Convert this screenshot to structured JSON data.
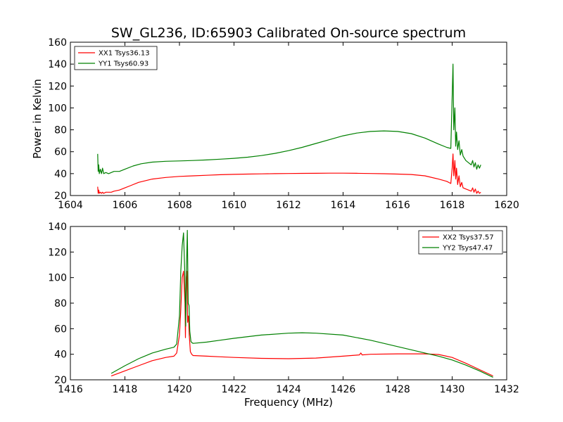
{
  "chart_data": [
    {
      "type": "line",
      "title": "SW_GL236, ID:65903 Calibrated On-source spectrum",
      "xlabel": "",
      "ylabel": "Power in Kelvin",
      "xlim": [
        1604,
        1620
      ],
      "ylim": [
        20,
        160
      ],
      "xticks": [
        1604,
        1606,
        1608,
        1610,
        1612,
        1614,
        1616,
        1618,
        1620
      ],
      "yticks": [
        20,
        40,
        60,
        80,
        100,
        120,
        140,
        160
      ],
      "legend_position": "top-left",
      "series": [
        {
          "name": "XX1 Tsys36.13",
          "color": "#ff0000",
          "x": [
            1605.0,
            1605.02,
            1605.04,
            1605.06,
            1605.1,
            1605.14,
            1605.18,
            1605.22,
            1605.3,
            1605.4,
            1605.5,
            1605.6,
            1605.8,
            1606.0,
            1606.2,
            1606.5,
            1607.0,
            1607.5,
            1608.0,
            1608.5,
            1609.0,
            1609.5,
            1610.0,
            1610.5,
            1611.0,
            1611.5,
            1612.0,
            1612.5,
            1613.0,
            1613.5,
            1614.0,
            1614.5,
            1615.0,
            1615.5,
            1616.0,
            1616.5,
            1617.0,
            1617.5,
            1617.8,
            1617.95,
            1618.0,
            1618.03,
            1618.06,
            1618.1,
            1618.13,
            1618.16,
            1618.2,
            1618.25,
            1618.3,
            1618.35,
            1618.4,
            1618.5,
            1618.6,
            1618.7,
            1618.75,
            1618.8,
            1618.85,
            1618.9,
            1618.95,
            1619.0,
            1619.05
          ],
          "values": [
            28,
            22,
            25,
            22,
            23,
            22,
            23,
            22,
            23,
            23,
            23,
            24,
            25,
            27,
            29,
            32,
            35,
            36.5,
            37.5,
            38,
            38.5,
            39,
            39.3,
            39.6,
            39.8,
            40,
            40.1,
            40.2,
            40.3,
            40.4,
            40.4,
            40.3,
            40.1,
            39.9,
            39.6,
            39.2,
            38,
            35,
            33,
            31,
            45,
            58,
            38,
            52,
            35,
            45,
            30,
            38,
            28,
            32,
            27,
            26,
            25,
            24,
            27,
            23,
            26,
            22,
            24,
            22,
            23
          ]
        },
        {
          "name": "YY1 Tsys60.93",
          "color": "#008000",
          "x": [
            1605.0,
            1605.02,
            1605.04,
            1605.06,
            1605.1,
            1605.14,
            1605.18,
            1605.22,
            1605.3,
            1605.4,
            1605.5,
            1605.6,
            1605.8,
            1606.0,
            1606.3,
            1606.6,
            1607.0,
            1607.5,
            1608.0,
            1608.5,
            1609.0,
            1609.5,
            1610.0,
            1610.5,
            1611.0,
            1611.5,
            1612.0,
            1612.5,
            1613.0,
            1613.5,
            1614.0,
            1614.5,
            1615.0,
            1615.5,
            1616.0,
            1616.5,
            1617.0,
            1617.5,
            1617.8,
            1617.95,
            1618.0,
            1618.03,
            1618.06,
            1618.1,
            1618.13,
            1618.16,
            1618.2,
            1618.25,
            1618.3,
            1618.35,
            1618.4,
            1618.5,
            1618.6,
            1618.7,
            1618.75,
            1618.8,
            1618.85,
            1618.9,
            1618.95,
            1619.0,
            1619.05
          ],
          "values": [
            58,
            42,
            48,
            40,
            44,
            40,
            45,
            40,
            41,
            40,
            41,
            42,
            42,
            44,
            47,
            49,
            50.5,
            51.3,
            51.6,
            52,
            52.5,
            53.2,
            54,
            55,
            56.5,
            58.5,
            61,
            64,
            67.5,
            71,
            74.5,
            77,
            78.5,
            79,
            78.5,
            76.5,
            72.5,
            67,
            64,
            63,
            110,
            140,
            80,
            100,
            65,
            78,
            62,
            70,
            57,
            62,
            56,
            52,
            50,
            48,
            52,
            46,
            50,
            44,
            48,
            45,
            48
          ]
        }
      ]
    },
    {
      "type": "line",
      "title": "",
      "xlabel": "Frequency (MHz)",
      "ylabel": "",
      "xlim": [
        1416,
        1432
      ],
      "ylim": [
        20,
        140
      ],
      "xticks": [
        1416,
        1418,
        1420,
        1422,
        1424,
        1426,
        1428,
        1430,
        1432
      ],
      "yticks": [
        20,
        40,
        60,
        80,
        100,
        120,
        140
      ],
      "legend_position": "top-right",
      "series": [
        {
          "name": "XX2 Tsys37.57",
          "color": "#ff0000",
          "x": [
            1417.5,
            1418.0,
            1418.5,
            1419.0,
            1419.5,
            1419.8,
            1419.9,
            1420.0,
            1420.05,
            1420.1,
            1420.15,
            1420.2,
            1420.22,
            1420.25,
            1420.28,
            1420.3,
            1420.33,
            1420.36,
            1420.4,
            1420.45,
            1420.5,
            1421.0,
            1421.5,
            1422.0,
            1423.0,
            1424.0,
            1425.0,
            1426.0,
            1426.6,
            1426.65,
            1426.7,
            1427.0,
            1428.0,
            1429.0,
            1429.5,
            1430.0,
            1430.5,
            1431.0,
            1431.5
          ],
          "values": [
            23,
            27,
            31,
            35,
            37.5,
            38.5,
            41,
            55,
            75,
            100,
            105,
            80,
            53,
            100,
            105,
            65,
            70,
            55,
            42,
            40,
            39,
            38.5,
            38,
            37.5,
            36.8,
            36.5,
            37,
            38.5,
            39.5,
            41,
            39.5,
            40,
            40.3,
            40.3,
            39.8,
            37.5,
            33,
            28,
            23
          ]
        },
        {
          "name": "YY2 Tsys47.47",
          "color": "#008000",
          "x": [
            1417.5,
            1418.0,
            1418.5,
            1419.0,
            1419.5,
            1419.8,
            1419.9,
            1420.0,
            1420.05,
            1420.1,
            1420.15,
            1420.2,
            1420.23,
            1420.26,
            1420.29,
            1420.32,
            1420.35,
            1420.38,
            1420.42,
            1420.46,
            1420.5,
            1421.0,
            1421.5,
            1422.0,
            1423.0,
            1424.0,
            1424.5,
            1425.0,
            1426.0,
            1427.0,
            1428.0,
            1429.0,
            1429.5,
            1430.0,
            1430.5,
            1431.0,
            1431.5
          ],
          "values": [
            25,
            31,
            36.5,
            41,
            44,
            45.5,
            48,
            70,
            105,
            125,
            135,
            100,
            62,
            110,
            137,
            80,
            78,
            58,
            50,
            49,
            48.5,
            49.5,
            51,
            52.5,
            55,
            56.5,
            56.8,
            56.5,
            55,
            51,
            46,
            41,
            38.5,
            35.5,
            31.5,
            27,
            22
          ]
        }
      ]
    }
  ]
}
